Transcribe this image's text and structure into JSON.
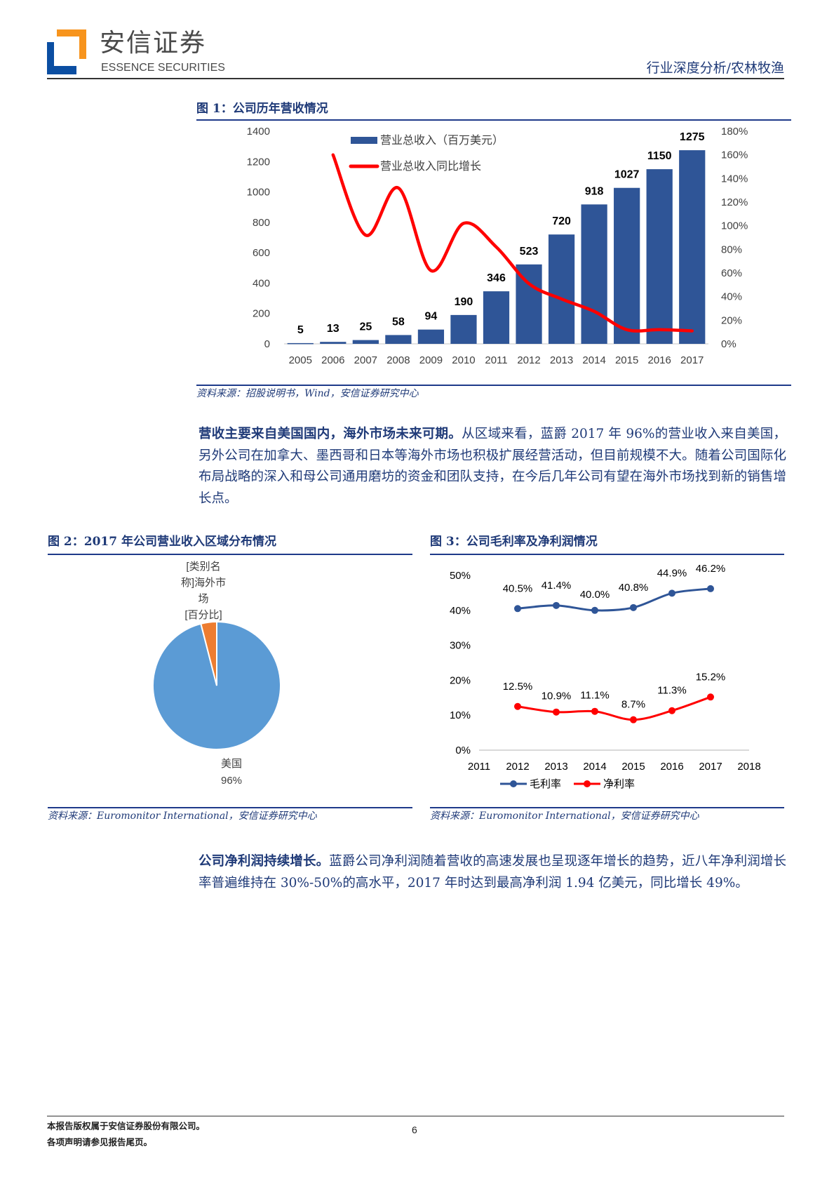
{
  "header": {
    "logo_cn": "安信证券",
    "logo_en": "ESSENCE SECURITIES",
    "section": "行业深度分析/农林牧渔"
  },
  "fig1": {
    "title": "图 1：公司历年营收情况",
    "source": "资料来源：招股说明书，Wind，安信证券研究中心"
  },
  "para1": {
    "bold": "营收主要来自美国国内，海外市场未来可期。",
    "text": "从区域来看，蓝爵 2017 年 96%的营业收入来自美国，另外公司在加拿大、墨西哥和日本等海外市场也积极扩展经营活动，但目前规模不大。随着公司国际化布局战略的深入和母公司通用磨坊的资金和团队支持，在今后几年公司有望在海外市场找到新的销售增长点。"
  },
  "fig2": {
    "title": "图 2：2017 年公司营业收入区域分布情况",
    "source": "资料来源：Euromonitor International，安信证券研究中心"
  },
  "fig3": {
    "title": "图 3：公司毛利率及净利润情况",
    "source": "资料来源：Euromonitor International，安信证券研究中心"
  },
  "para2": {
    "bold": "公司净利润持续增长。",
    "text": "蓝爵公司净利润随着营收的高速发展也呈现逐年增长的趋势，近八年净利润增长率普遍维持在 30%-50%的高水平，2017 年时达到最高净利润 1.94 亿美元，同比增长 49%。"
  },
  "footer": {
    "line1": "本报告版权属于安信证券股份有限公司。",
    "line2": "各项声明请参见报告尾页。",
    "page": "6"
  },
  "chart_data": [
    {
      "type": "bar",
      "title": "图 1：公司历年营收情况",
      "categories": [
        "2005",
        "2006",
        "2007",
        "2008",
        "2009",
        "2010",
        "2011",
        "2012",
        "2013",
        "2014",
        "2015",
        "2016",
        "2017"
      ],
      "series": [
        {
          "name": "营业总收入（百万美元）",
          "axis": "left",
          "type": "bar",
          "color": "#2f5597",
          "values": [
            5,
            13,
            25,
            58,
            94,
            190,
            346,
            523,
            720,
            918,
            1027,
            1150,
            1275
          ]
        },
        {
          "name": "营业总收入同比增长",
          "axis": "right",
          "type": "line",
          "color": "#ff0000",
          "values": [
            null,
            160,
            92,
            132,
            62,
            102,
            82,
            51,
            38,
            27.5,
            12,
            12,
            11
          ]
        }
      ],
      "ylim": [
        0,
        1400
      ],
      "yticks": [
        "0",
        "200",
        "400",
        "600",
        "800",
        "1000",
        "1200",
        "1400"
      ],
      "y2lim": [
        0,
        180
      ],
      "y2ticks": [
        "0%",
        "20%",
        "40%",
        "60%",
        "80%",
        "100%",
        "120%",
        "140%",
        "160%",
        "180%"
      ],
      "legend": "top-left"
    },
    {
      "type": "pie",
      "title": "图 2：2017 年公司营业收入区域分布情况",
      "slices": [
        {
          "label": "美国",
          "value": 96,
          "display": "96%",
          "color": "#5b9bd5"
        },
        {
          "label": "[类别名称]海外市场",
          "value": 4,
          "display": "[百分比]",
          "color": "#ed7d31"
        }
      ],
      "label_lines": [
        "[类别名",
        "称]海外市",
        "场",
        "[百分比]"
      ]
    },
    {
      "type": "line",
      "title": "图 3：公司毛利率及净利润情况",
      "x": [
        "2011",
        "2012",
        "2013",
        "2014",
        "2015",
        "2016",
        "2017",
        "2018"
      ],
      "series": [
        {
          "name": "毛利率",
          "color": "#2f5597",
          "points": [
            [
              "2012",
              40.5
            ],
            [
              "2013",
              41.4
            ],
            [
              "2014",
              40.0
            ],
            [
              "2015",
              40.8
            ],
            [
              "2016",
              44.9
            ],
            [
              "2017",
              46.2
            ]
          ],
          "labels": [
            "40.5%",
            "41.4%",
            "40.0%",
            "40.8%",
            "44.9%",
            "46.2%"
          ]
        },
        {
          "name": "净利率",
          "color": "#ff0000",
          "points": [
            [
              "2012",
              12.5
            ],
            [
              "2013",
              10.9
            ],
            [
              "2014",
              11.1
            ],
            [
              "2015",
              8.7
            ],
            [
              "2016",
              11.3
            ],
            [
              "2017",
              15.2
            ]
          ],
          "labels": [
            "12.5%",
            "10.9%",
            "11.1%",
            "8.7%",
            "11.3%",
            "15.2%"
          ]
        }
      ],
      "ylim": [
        0,
        50
      ],
      "yticks": [
        "0%",
        "10%",
        "20%",
        "30%",
        "40%",
        "50%"
      ],
      "legend": "bottom"
    }
  ]
}
